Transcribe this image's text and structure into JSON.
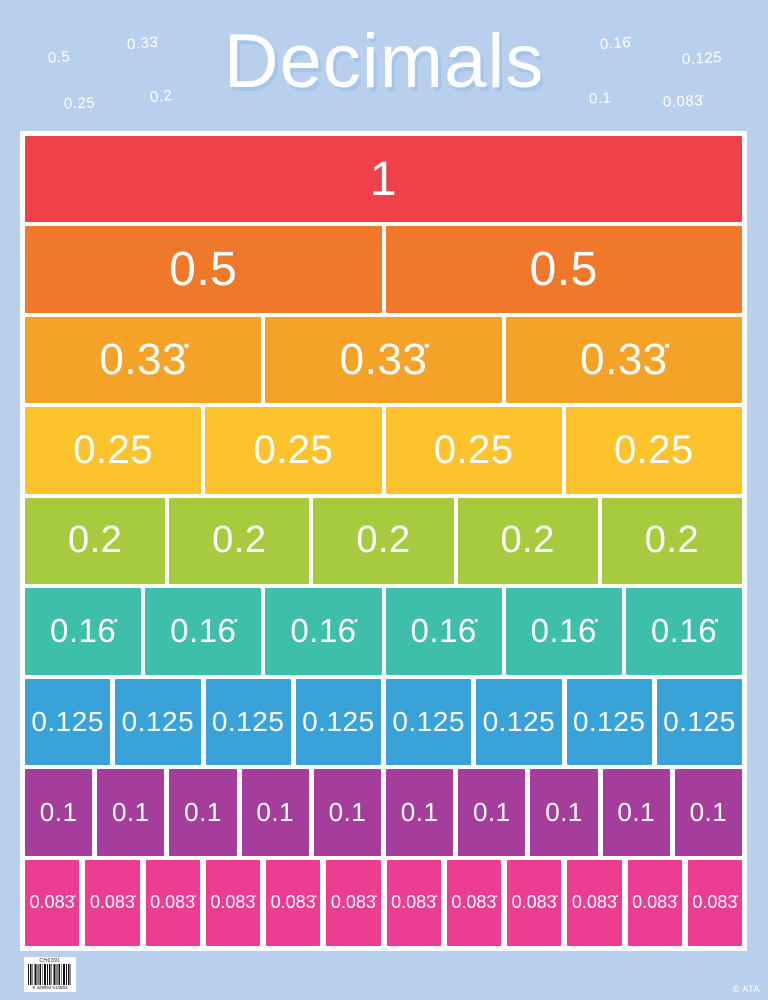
{
  "header": {
    "title": "Decimals",
    "floating_labels": [
      "0.5",
      "0.33̇",
      "0.25",
      "0.2",
      "0.16̇",
      "0.125",
      "0.1",
      "0.083̇"
    ]
  },
  "chart_data": {
    "type": "bar",
    "title": "Decimals",
    "description_layout": "fraction wall: each row splits one whole into equal decimal parts",
    "rows": [
      {
        "label": "1",
        "segments": 1,
        "color": "#ee4149"
      },
      {
        "label": "0.5",
        "segments": 2,
        "color": "#f0782a"
      },
      {
        "label": "0.33̇",
        "segments": 3,
        "color": "#f5a328"
      },
      {
        "label": "0.25",
        "segments": 4,
        "color": "#fcc32d"
      },
      {
        "label": "0.2",
        "segments": 5,
        "color": "#a6cb3f"
      },
      {
        "label": "0.16̇",
        "segments": 6,
        "color": "#3ebfaa"
      },
      {
        "label": "0.125",
        "segments": 8,
        "color": "#38a2d9"
      },
      {
        "label": "0.1",
        "segments": 10,
        "color": "#a53d9c"
      },
      {
        "label": "0.083̇",
        "segments": 12,
        "color": "#ec3d93"
      }
    ]
  },
  "colors": {
    "background": "#b8d0ed",
    "frame": "#ffffff",
    "title_text": "#ffffff",
    "title_shadow": "#a5c4e8"
  },
  "footer": {
    "barcode_label": "CH6391",
    "barcode_number": "9 329094 013583",
    "copyright": "© ATA"
  }
}
